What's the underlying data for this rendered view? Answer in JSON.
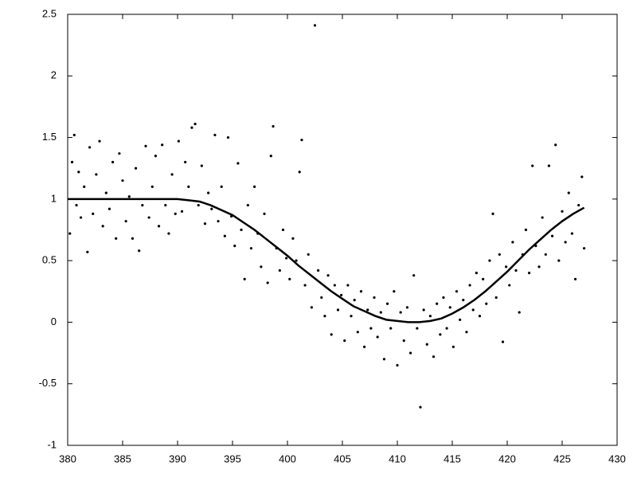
{
  "chart_data": {
    "type": "scatter",
    "xlim": [
      380,
      430
    ],
    "xticks": [
      380,
      385,
      390,
      395,
      400,
      405,
      410,
      415,
      420,
      425,
      430
    ],
    "ylim": [
      -1,
      2.5
    ],
    "yticks": [
      -1,
      -0.5,
      0,
      0.5,
      1,
      1.5,
      2,
      2.5
    ],
    "series": [
      {
        "type": "scatter",
        "color": "#000000",
        "x": [
          380.2,
          380.4,
          380.6,
          380.8,
          381.0,
          381.2,
          381.5,
          381.8,
          382.0,
          382.3,
          382.6,
          382.9,
          383.2,
          383.5,
          383.8,
          384.1,
          384.4,
          384.7,
          385.0,
          385.3,
          385.6,
          385.9,
          386.2,
          386.5,
          386.8,
          387.1,
          387.4,
          387.7,
          388.0,
          388.3,
          388.6,
          388.9,
          389.2,
          389.5,
          389.8,
          390.1,
          390.4,
          390.7,
          391.0,
          391.3,
          391.6,
          391.9,
          392.2,
          392.5,
          392.8,
          393.1,
          393.4,
          393.7,
          394.0,
          394.3,
          394.6,
          394.9,
          395.2,
          395.5,
          395.8,
          396.1,
          396.4,
          396.7,
          397.0,
          397.3,
          397.6,
          397.9,
          398.2,
          398.5,
          398.7,
          399.0,
          399.3,
          399.6,
          399.9,
          400.2,
          400.5,
          400.8,
          401.1,
          401.3,
          401.6,
          401.9,
          402.2,
          402.5,
          402.8,
          403.1,
          403.4,
          403.7,
          404.0,
          404.3,
          404.6,
          404.9,
          405.2,
          405.5,
          405.8,
          406.1,
          406.4,
          406.7,
          407.0,
          407.3,
          407.6,
          407.9,
          408.2,
          408.5,
          408.8,
          409.1,
          409.4,
          409.7,
          410.0,
          410.3,
          410.6,
          410.9,
          411.2,
          411.5,
          411.8,
          412.1,
          412.4,
          412.7,
          413.0,
          413.3,
          413.6,
          413.9,
          414.2,
          414.5,
          414.8,
          415.1,
          415.4,
          415.7,
          416.0,
          416.3,
          416.6,
          416.9,
          417.2,
          417.5,
          417.8,
          418.1,
          418.4,
          418.7,
          419.0,
          419.3,
          419.6,
          419.9,
          420.2,
          420.5,
          420.8,
          421.1,
          421.4,
          421.7,
          422.0,
          422.3,
          422.6,
          422.9,
          423.2,
          423.5,
          423.8,
          424.1,
          424.4,
          424.7,
          425.0,
          425.3,
          425.6,
          425.9,
          426.2,
          426.5,
          426.8,
          427.0
        ],
        "values": [
          0.72,
          1.3,
          1.52,
          0.95,
          1.22,
          0.85,
          1.1,
          0.57,
          1.42,
          0.88,
          1.2,
          1.47,
          0.78,
          1.05,
          0.92,
          1.3,
          0.68,
          1.37,
          1.15,
          0.82,
          1.02,
          0.68,
          1.25,
          0.58,
          0.95,
          1.43,
          0.85,
          1.1,
          1.35,
          0.78,
          1.44,
          0.95,
          0.72,
          1.2,
          0.88,
          1.47,
          0.9,
          1.3,
          1.1,
          1.58,
          1.61,
          0.95,
          1.27,
          0.8,
          1.05,
          0.92,
          1.52,
          0.82,
          1.1,
          0.7,
          1.5,
          0.86,
          0.62,
          1.29,
          0.75,
          0.35,
          0.95,
          0.6,
          1.1,
          0.72,
          0.45,
          0.88,
          0.32,
          1.35,
          1.59,
          0.6,
          0.42,
          0.75,
          0.52,
          0.35,
          0.68,
          0.5,
          1.22,
          1.48,
          0.3,
          0.55,
          0.12,
          2.41,
          0.42,
          0.2,
          0.05,
          0.38,
          -0.1,
          0.3,
          0.1,
          0.22,
          -0.15,
          0.3,
          0.05,
          0.18,
          -0.08,
          0.25,
          -0.2,
          0.1,
          -0.05,
          0.2,
          -0.12,
          0.08,
          -0.3,
          0.15,
          -0.05,
          0.25,
          -0.35,
          0.08,
          -0.15,
          0.12,
          -0.25,
          0.38,
          -0.05,
          -0.69,
          0.1,
          -0.18,
          0.05,
          -0.28,
          0.15,
          -0.1,
          0.2,
          -0.05,
          0.12,
          -0.2,
          0.25,
          0.02,
          0.18,
          -0.08,
          0.3,
          0.1,
          0.4,
          0.05,
          0.35,
          0.15,
          0.5,
          0.88,
          0.2,
          0.55,
          -0.16,
          0.45,
          0.3,
          0.65,
          0.42,
          0.08,
          0.55,
          0.75,
          0.4,
          1.27,
          0.62,
          0.45,
          0.85,
          0.55,
          1.27,
          0.7,
          1.44,
          0.5,
          0.9,
          0.65,
          1.05,
          0.72,
          0.35,
          0.95,
          1.18,
          0.6
        ]
      },
      {
        "type": "line",
        "color": "#000000",
        "x": [
          380,
          381,
          382,
          383,
          384,
          385,
          386,
          387,
          388,
          389,
          390,
          391,
          392,
          393,
          394,
          395,
          396,
          397,
          398,
          399,
          400,
          401,
          402,
          403,
          404,
          405,
          406,
          407,
          408,
          409,
          410,
          411,
          412,
          413,
          414,
          415,
          416,
          417,
          418,
          419,
          420,
          421,
          422,
          423,
          424,
          425,
          426,
          427
        ],
        "values": [
          1,
          1,
          1,
          1,
          1,
          1,
          1,
          1,
          1,
          1,
          1,
          0.99,
          0.98,
          0.95,
          0.91,
          0.87,
          0.81,
          0.75,
          0.68,
          0.61,
          0.54,
          0.46,
          0.39,
          0.32,
          0.25,
          0.19,
          0.13,
          0.09,
          0.05,
          0.02,
          0.01,
          0,
          0,
          0.01,
          0.03,
          0.07,
          0.12,
          0.18,
          0.25,
          0.33,
          0.41,
          0.5,
          0.59,
          0.67,
          0.75,
          0.82,
          0.88,
          0.93
        ]
      }
    ]
  }
}
